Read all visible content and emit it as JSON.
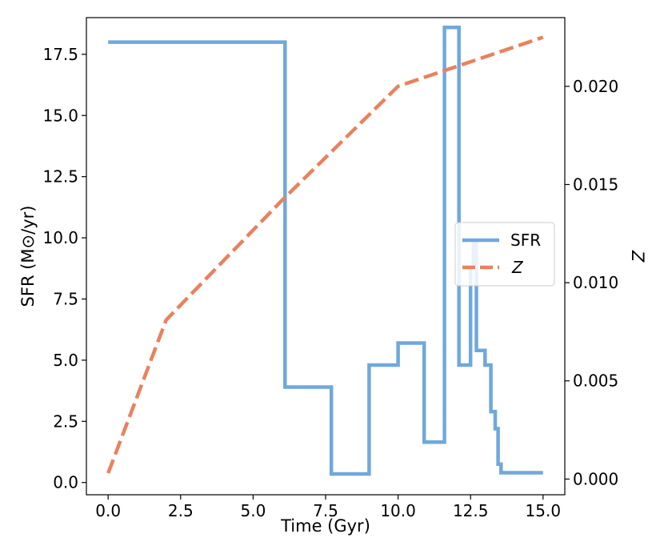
{
  "chart_data": {
    "type": "line",
    "xlabel": "Time (Gyr)",
    "ylabel": "SFR (M⊙/yr)",
    "y2label": "Z",
    "xlim": [
      -0.75,
      15.75
    ],
    "ylim": [
      -0.5,
      19.0
    ],
    "y2lim": [
      -0.0008,
      0.0235
    ],
    "xticks": [
      "0.0",
      "2.5",
      "5.0",
      "7.5",
      "10.0",
      "12.5",
      "15.0"
    ],
    "yticks": [
      "0.0",
      "2.5",
      "5.0",
      "7.5",
      "10.0",
      "12.5",
      "15.0",
      "17.5"
    ],
    "y2ticks": [
      "0.000",
      "0.005",
      "0.010",
      "0.015",
      "0.020"
    ],
    "legend_position": "center-right",
    "grid": false,
    "series": [
      {
        "name": "SFR",
        "axis": "left",
        "style": "solid",
        "color": "#6fa8dc",
        "points": [
          [
            0.0,
            18.0
          ],
          [
            6.1,
            18.0
          ],
          [
            6.1,
            3.9
          ],
          [
            7.7,
            3.9
          ],
          [
            7.7,
            0.35
          ],
          [
            9.0,
            0.35
          ],
          [
            9.0,
            4.8
          ],
          [
            10.0,
            4.8
          ],
          [
            10.0,
            5.7
          ],
          [
            10.9,
            5.7
          ],
          [
            10.9,
            1.65
          ],
          [
            11.6,
            1.65
          ],
          [
            11.6,
            18.6
          ],
          [
            12.1,
            18.6
          ],
          [
            12.1,
            4.8
          ],
          [
            12.5,
            4.8
          ],
          [
            12.5,
            8.8
          ],
          [
            12.6,
            8.8
          ],
          [
            12.6,
            9.8
          ],
          [
            12.7,
            9.8
          ],
          [
            12.7,
            5.4
          ],
          [
            13.0,
            5.4
          ],
          [
            13.0,
            4.8
          ],
          [
            13.2,
            4.8
          ],
          [
            13.2,
            2.9
          ],
          [
            13.35,
            2.9
          ],
          [
            13.35,
            2.2
          ],
          [
            13.45,
            2.2
          ],
          [
            13.45,
            0.75
          ],
          [
            13.55,
            0.75
          ],
          [
            13.55,
            0.4
          ],
          [
            15.0,
            0.4
          ]
        ]
      },
      {
        "name": "Z",
        "axis": "right",
        "style": "dashed",
        "color": "#e8825d",
        "points": [
          [
            0.0,
            0.0003
          ],
          [
            2.0,
            0.0081
          ],
          [
            6.0,
            0.0142
          ],
          [
            10.0,
            0.02
          ],
          [
            15.0,
            0.0225
          ]
        ]
      }
    ]
  }
}
